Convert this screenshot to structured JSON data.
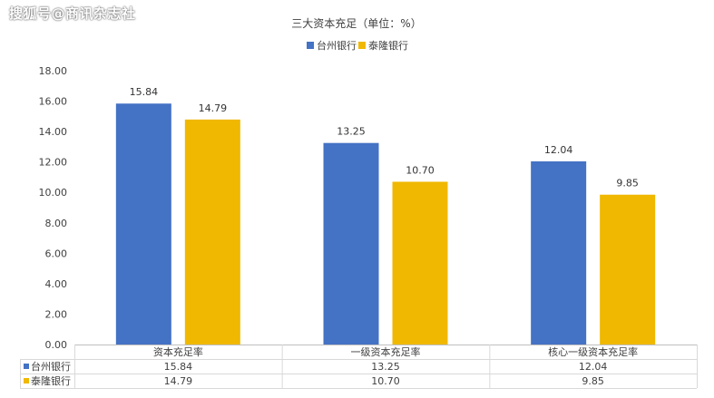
{
  "watermark": "搜狐号@商讯杂志社",
  "chart_data": {
    "type": "bar",
    "title": "三大资本充足（单位：%）",
    "categories": [
      "资本充足率",
      "一级资本充足率",
      "核心一级资本充足率"
    ],
    "series": [
      {
        "name": "台州银行",
        "color": "#4472c4",
        "values": [
          15.84,
          13.25,
          12.04
        ],
        "labels": [
          "15.84",
          "13.25",
          "12.04"
        ]
      },
      {
        "name": "泰隆银行",
        "color": "#f0b800",
        "values": [
          14.79,
          10.7,
          9.85
        ],
        "labels": [
          "14.79",
          "10.70",
          "9.85"
        ]
      }
    ],
    "ylim": [
      0,
      18
    ],
    "yticks": [
      "0.00",
      "2.00",
      "4.00",
      "6.00",
      "8.00",
      "10.00",
      "12.00",
      "14.00",
      "16.00",
      "18.00"
    ],
    "grid": false,
    "legend": "top-center",
    "data_table": true
  }
}
